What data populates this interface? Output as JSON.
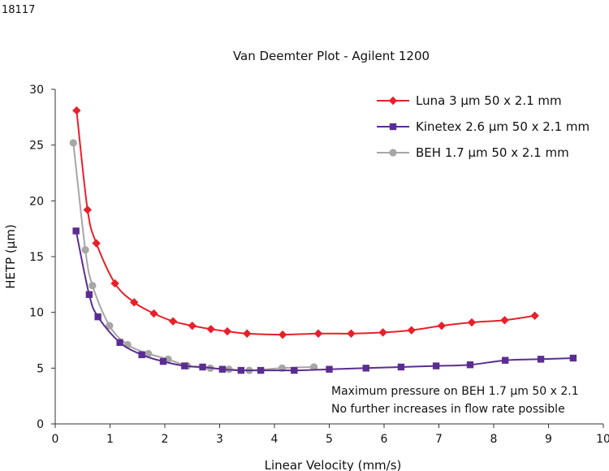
{
  "figure_id": "18117",
  "chart_data": {
    "type": "line",
    "title": "Van Deemter Plot - Agilent 1200",
    "xlabel": "Linear Velocity (mm/s)",
    "ylabel": "HETP (µm)",
    "xlim": [
      0,
      10
    ],
    "ylim": [
      0,
      30
    ],
    "x_ticks": [
      0,
      1,
      2,
      3,
      4,
      5,
      6,
      7,
      8,
      9,
      10
    ],
    "y_ticks": [
      0,
      5,
      10,
      15,
      20,
      25,
      30
    ],
    "grid": false,
    "legend_position": "top-right",
    "annotation": [
      "Maximum pressure on BEH 1.7 µm 50 x 2.1",
      "No further increases in flow rate possible"
    ],
    "series": [
      {
        "name": "Luna 3 µm 50 x 2.1 mm",
        "color": "#e8202a",
        "marker": "diamond",
        "x": [
          0.39,
          0.59,
          0.75,
          1.09,
          1.44,
          1.8,
          2.15,
          2.5,
          2.84,
          3.14,
          3.5,
          4.15,
          4.8,
          5.4,
          5.98,
          6.5,
          7.05,
          7.6,
          8.2,
          8.75
        ],
        "y": [
          28.1,
          19.2,
          16.2,
          12.6,
          10.9,
          9.9,
          9.2,
          8.8,
          8.5,
          8.3,
          8.1,
          8.0,
          8.1,
          8.1,
          8.2,
          8.4,
          8.8,
          9.1,
          9.3,
          9.7
        ]
      },
      {
        "name": "Kinetex 2.6 µm 50 x 2.1 mm",
        "color": "#5b2d91",
        "marker": "square",
        "x": [
          0.38,
          0.62,
          0.78,
          1.18,
          1.58,
          1.97,
          2.36,
          2.69,
          3.05,
          3.39,
          3.75,
          4.36,
          5.0,
          5.67,
          6.31,
          6.95,
          7.57,
          8.21,
          8.86,
          9.45
        ],
        "y": [
          17.3,
          11.6,
          9.6,
          7.3,
          6.2,
          5.6,
          5.2,
          5.1,
          4.9,
          4.8,
          4.8,
          4.8,
          4.9,
          5.0,
          5.1,
          5.2,
          5.3,
          5.7,
          5.8,
          5.9
        ]
      },
      {
        "name": "BEH 1.7 µm 50 x 2.1 mm",
        "color": "#a6a6a6",
        "marker": "circle",
        "x": [
          0.33,
          0.55,
          0.68,
          0.99,
          1.32,
          1.7,
          2.06,
          2.41,
          2.83,
          3.17,
          3.54,
          4.14,
          4.72
        ],
        "y": [
          25.2,
          15.6,
          12.4,
          8.8,
          7.1,
          6.3,
          5.8,
          5.2,
          5.0,
          4.9,
          4.8,
          5.0,
          5.1
        ]
      }
    ]
  }
}
